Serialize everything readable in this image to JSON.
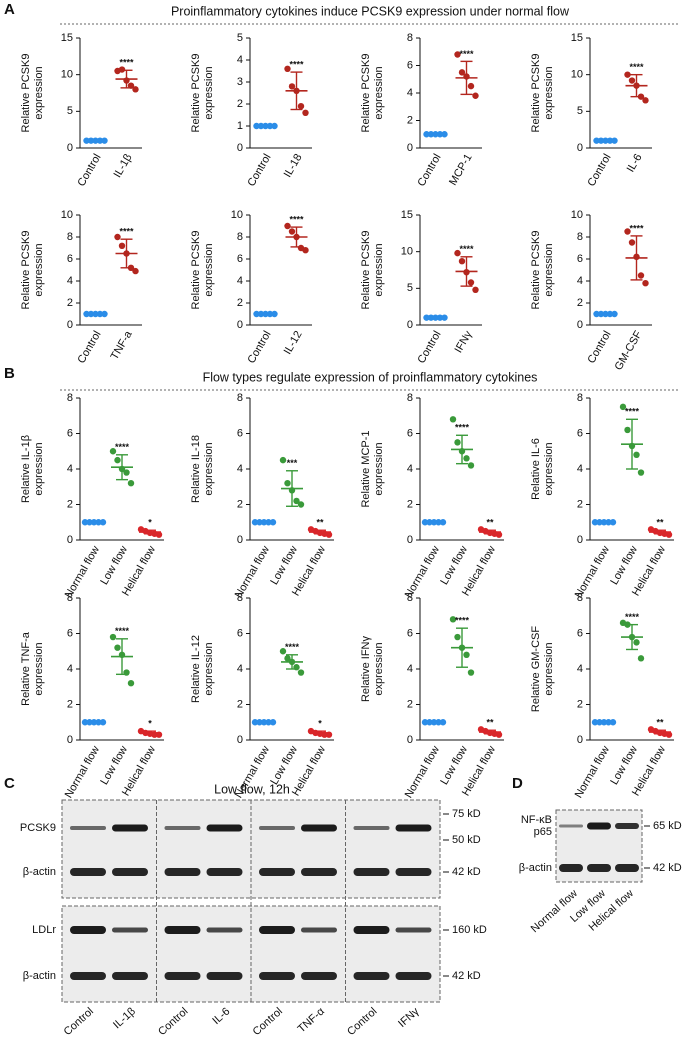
{
  "panel_a": {
    "label": "A",
    "title": "Proinflammatory cytokines induce PCSK9 expression under normal flow"
  },
  "panel_b": {
    "label": "B",
    "title": "Flow types regulate expression of proinflammatory cytokines"
  },
  "chart_data": [
    {
      "type": "dot",
      "ylabel": [
        "Relative PCSK9",
        "expression"
      ],
      "categories": [
        "Control",
        "IL-1β"
      ],
      "values": [
        [
          1,
          1,
          1,
          1,
          1
        ],
        [
          10.5,
          10.7,
          9.2,
          8.5,
          8.0
        ]
      ],
      "means": [
        1,
        9.4
      ],
      "sds": [
        0,
        1.2
      ],
      "colors": [
        "#2b8de8",
        "#b3261e"
      ],
      "annotations": [
        null,
        "****"
      ],
      "ylim": [
        0,
        15
      ],
      "yticks": [
        0,
        5,
        10,
        15
      ]
    },
    {
      "type": "dot",
      "ylabel": [
        "Relative PCSK9",
        "expression"
      ],
      "categories": [
        "Control",
        "IL-18"
      ],
      "values": [
        [
          1,
          1,
          1,
          1,
          1
        ],
        [
          3.6,
          2.8,
          2.6,
          1.9,
          1.6
        ]
      ],
      "means": [
        1,
        2.6
      ],
      "sds": [
        0,
        0.85
      ],
      "colors": [
        "#2b8de8",
        "#b3261e"
      ],
      "annotations": [
        null,
        "****"
      ],
      "ylim": [
        0,
        5
      ],
      "yticks": [
        0,
        1,
        2,
        3,
        4,
        5
      ]
    },
    {
      "type": "dot",
      "ylabel": [
        "Relative PCSK9",
        "expression"
      ],
      "categories": [
        "Control",
        "MCP-1"
      ],
      "values": [
        [
          1,
          1,
          1,
          1,
          1
        ],
        [
          6.8,
          5.5,
          5.2,
          4.5,
          3.8
        ]
      ],
      "means": [
        1,
        5.1
      ],
      "sds": [
        0,
        1.2
      ],
      "colors": [
        "#2b8de8",
        "#b3261e"
      ],
      "annotations": [
        null,
        "****"
      ],
      "ylim": [
        0,
        8
      ],
      "yticks": [
        0,
        2,
        4,
        6,
        8
      ]
    },
    {
      "type": "dot",
      "ylabel": [
        "Relative PCSK9",
        "expression"
      ],
      "categories": [
        "Control",
        "IL-6"
      ],
      "values": [
        [
          1,
          1,
          1,
          1,
          1
        ],
        [
          10.0,
          9.2,
          8.5,
          7.0,
          6.5
        ]
      ],
      "means": [
        1,
        8.5
      ],
      "sds": [
        0,
        1.5
      ],
      "colors": [
        "#2b8de8",
        "#b3261e"
      ],
      "annotations": [
        null,
        "****"
      ],
      "ylim": [
        0,
        15
      ],
      "yticks": [
        0,
        5,
        10,
        15
      ]
    },
    {
      "type": "dot",
      "ylabel": [
        "Relative PCSK9",
        "expression"
      ],
      "categories": [
        "Control",
        "TNF-a"
      ],
      "values": [
        [
          1,
          1,
          1,
          1,
          1
        ],
        [
          8.0,
          7.2,
          6.5,
          5.2,
          4.9
        ]
      ],
      "means": [
        1,
        6.5
      ],
      "sds": [
        0,
        1.3
      ],
      "colors": [
        "#2b8de8",
        "#b3261e"
      ],
      "annotations": [
        null,
        "****"
      ],
      "ylim": [
        0,
        10
      ],
      "yticks": [
        0,
        2,
        4,
        6,
        8,
        10
      ]
    },
    {
      "type": "dot",
      "ylabel": [
        "Relative PCSK9",
        "expression"
      ],
      "categories": [
        "Control",
        "IL-12"
      ],
      "values": [
        [
          1,
          1,
          1,
          1,
          1
        ],
        [
          9.0,
          8.5,
          8.0,
          7.0,
          6.8
        ]
      ],
      "means": [
        1,
        8.0
      ],
      "sds": [
        0,
        0.9
      ],
      "colors": [
        "#2b8de8",
        "#b3261e"
      ],
      "annotations": [
        null,
        "****"
      ],
      "ylim": [
        0,
        10
      ],
      "yticks": [
        0,
        2,
        4,
        6,
        8,
        10
      ]
    },
    {
      "type": "dot",
      "ylabel": [
        "Relative PCSK9",
        "expression"
      ],
      "categories": [
        "Control",
        "IFNγ"
      ],
      "values": [
        [
          1,
          1,
          1,
          1,
          1
        ],
        [
          9.8,
          8.7,
          7.2,
          5.8,
          4.8
        ]
      ],
      "means": [
        1,
        7.3
      ],
      "sds": [
        0,
        2.0
      ],
      "colors": [
        "#2b8de8",
        "#b3261e"
      ],
      "annotations": [
        null,
        "****"
      ],
      "ylim": [
        0,
        15
      ],
      "yticks": [
        0,
        5,
        10,
        15
      ]
    },
    {
      "type": "dot",
      "ylabel": [
        "Relative PCSK9",
        "expression"
      ],
      "categories": [
        "Control",
        "GM-CSF"
      ],
      "values": [
        [
          1,
          1,
          1,
          1,
          1
        ],
        [
          8.5,
          7.5,
          6.2,
          4.5,
          3.8
        ]
      ],
      "means": [
        1,
        6.1
      ],
      "sds": [
        0,
        2.0
      ],
      "colors": [
        "#2b8de8",
        "#b3261e"
      ],
      "annotations": [
        null,
        "****"
      ],
      "ylim": [
        0,
        10
      ],
      "yticks": [
        0,
        2,
        4,
        6,
        8,
        10
      ]
    },
    {
      "type": "dot",
      "ylabel": [
        "Relative IL-1β",
        "expression"
      ],
      "categories": [
        "Normal flow",
        "Low flow",
        "Helical flow"
      ],
      "values": [
        [
          1,
          1,
          1,
          1,
          1
        ],
        [
          5.0,
          4.5,
          4.0,
          3.8,
          3.2
        ],
        [
          0.6,
          0.5,
          0.4,
          0.35,
          0.3
        ]
      ],
      "means": [
        1,
        4.1,
        0.45
      ],
      "sds": [
        0,
        0.7,
        0.1
      ],
      "colors": [
        "#2b8de8",
        "#3a9a3a",
        "#d9262a"
      ],
      "annotations": [
        null,
        "****",
        "*"
      ],
      "ylim": [
        0,
        8
      ],
      "yticks": [
        0,
        2,
        4,
        6,
        8
      ]
    },
    {
      "type": "dot",
      "ylabel": [
        "Relative IL-18",
        "expression"
      ],
      "categories": [
        "Normal flow",
        "Low flow",
        "Helical flow"
      ],
      "values": [
        [
          1,
          1,
          1,
          1,
          1
        ],
        [
          4.5,
          3.2,
          2.8,
          2.2,
          2.0
        ],
        [
          0.6,
          0.5,
          0.4,
          0.35,
          0.3
        ]
      ],
      "means": [
        1,
        2.9,
        0.45
      ],
      "sds": [
        0,
        1.0,
        0.1
      ],
      "colors": [
        "#2b8de8",
        "#3a9a3a",
        "#d9262a"
      ],
      "annotations": [
        null,
        "***",
        "**"
      ],
      "ylim": [
        0,
        8
      ],
      "yticks": [
        0,
        2,
        4,
        6,
        8
      ]
    },
    {
      "type": "dot",
      "ylabel": [
        "Relative MCP-1",
        "expression"
      ],
      "categories": [
        "Normal flow",
        "Low flow",
        "Helical flow"
      ],
      "values": [
        [
          1,
          1,
          1,
          1,
          1
        ],
        [
          6.8,
          5.5,
          5.0,
          4.6,
          4.2
        ],
        [
          0.6,
          0.5,
          0.4,
          0.35,
          0.3
        ]
      ],
      "means": [
        1,
        5.1,
        0.45
      ],
      "sds": [
        0,
        0.8,
        0.1
      ],
      "colors": [
        "#2b8de8",
        "#3a9a3a",
        "#d9262a"
      ],
      "annotations": [
        null,
        "****",
        "**"
      ],
      "ylim": [
        0,
        8
      ],
      "yticks": [
        0,
        2,
        4,
        6,
        8
      ]
    },
    {
      "type": "dot",
      "ylabel": [
        "Relative IL-6",
        "expression"
      ],
      "categories": [
        "Normal flow",
        "Low flow",
        "Helical flow"
      ],
      "values": [
        [
          1,
          1,
          1,
          1,
          1
        ],
        [
          7.5,
          6.2,
          5.3,
          4.8,
          3.8
        ],
        [
          0.6,
          0.5,
          0.4,
          0.35,
          0.3
        ]
      ],
      "means": [
        1,
        5.4,
        0.45
      ],
      "sds": [
        0,
        1.4,
        0.1
      ],
      "colors": [
        "#2b8de8",
        "#3a9a3a",
        "#d9262a"
      ],
      "annotations": [
        null,
        "****",
        "**"
      ],
      "ylim": [
        0,
        8
      ],
      "yticks": [
        0,
        2,
        4,
        6,
        8
      ]
    },
    {
      "type": "dot",
      "ylabel": [
        "Relative TNF-a",
        "expression"
      ],
      "categories": [
        "Normal flow",
        "Low flow",
        "Helical flow"
      ],
      "values": [
        [
          1,
          1,
          1,
          1,
          1
        ],
        [
          5.8,
          5.2,
          4.8,
          3.8,
          3.2
        ],
        [
          0.5,
          0.4,
          0.35,
          0.3,
          0.3
        ]
      ],
      "means": [
        1,
        4.7,
        0.4
      ],
      "sds": [
        0,
        1.0,
        0.1
      ],
      "colors": [
        "#2b8de8",
        "#3a9a3a",
        "#d9262a"
      ],
      "annotations": [
        null,
        "****",
        "*"
      ],
      "ylim": [
        0,
        8
      ],
      "yticks": [
        0,
        2,
        4,
        6,
        8
      ]
    },
    {
      "type": "dot",
      "ylabel": [
        "Relative IL-12",
        "expression"
      ],
      "categories": [
        "Normal flow",
        "Low flow",
        "Helical flow"
      ],
      "values": [
        [
          1,
          1,
          1,
          1,
          1
        ],
        [
          5.0,
          4.6,
          4.4,
          4.1,
          3.8
        ],
        [
          0.5,
          0.4,
          0.35,
          0.3,
          0.3
        ]
      ],
      "means": [
        1,
        4.4,
        0.4
      ],
      "sds": [
        0,
        0.4,
        0.1
      ],
      "colors": [
        "#2b8de8",
        "#3a9a3a",
        "#d9262a"
      ],
      "annotations": [
        null,
        "****",
        "*"
      ],
      "ylim": [
        0,
        8
      ],
      "yticks": [
        0,
        2,
        4,
        6,
        8
      ]
    },
    {
      "type": "dot",
      "ylabel": [
        "Relative IFNγ",
        "expression"
      ],
      "categories": [
        "Normal flow",
        "Low flow",
        "Helical flow"
      ],
      "values": [
        [
          1,
          1,
          1,
          1,
          1
        ],
        [
          6.8,
          5.8,
          5.2,
          4.8,
          3.8
        ],
        [
          0.6,
          0.5,
          0.4,
          0.35,
          0.3
        ]
      ],
      "means": [
        1,
        5.2,
        0.45
      ],
      "sds": [
        0,
        1.1,
        0.1
      ],
      "colors": [
        "#2b8de8",
        "#3a9a3a",
        "#d9262a"
      ],
      "annotations": [
        null,
        "****",
        "**"
      ],
      "ylim": [
        0,
        8
      ],
      "yticks": [
        0,
        2,
        4,
        6,
        8
      ]
    },
    {
      "type": "dot",
      "ylabel": [
        "Relative GM-CSF",
        "expression"
      ],
      "categories": [
        "Normal flow",
        "Low flow",
        "Helical flow"
      ],
      "values": [
        [
          1,
          1,
          1,
          1,
          1
        ],
        [
          6.6,
          6.5,
          5.8,
          5.5,
          4.6
        ],
        [
          0.6,
          0.5,
          0.4,
          0.35,
          0.3
        ]
      ],
      "means": [
        1,
        5.8,
        0.45
      ],
      "sds": [
        0,
        0.7,
        0.1
      ],
      "colors": [
        "#2b8de8",
        "#3a9a3a",
        "#d9262a"
      ],
      "annotations": [
        null,
        "****",
        "**"
      ],
      "ylim": [
        0,
        8
      ],
      "yticks": [
        0,
        2,
        4,
        6,
        8
      ]
    }
  ],
  "panel_c": {
    "label": "C",
    "title": "Low flow, 12h",
    "rows": [
      [
        "PCSK9"
      ],
      [
        "β-actin"
      ],
      [
        "LDLr"
      ],
      [
        "β-actin"
      ]
    ],
    "markers": [
      [
        "75 kD",
        "50 kD"
      ],
      [
        "42 kD"
      ],
      [
        "160 kD"
      ],
      [
        "42 kD"
      ]
    ],
    "lanes": [
      "Control",
      "IL-1β",
      "Control",
      "IL-6",
      "Control",
      "TNF-α",
      "Control",
      "IFNγ"
    ]
  },
  "panel_d": {
    "label": "D",
    "rows": [
      [
        "NF-κB",
        "p65"
      ],
      [
        "β-actin"
      ]
    ],
    "markers": [
      [
        "65 kD"
      ],
      [
        "42 kD"
      ]
    ],
    "lanes": [
      "Normal flow",
      "Low flow",
      "Helical flow"
    ]
  }
}
